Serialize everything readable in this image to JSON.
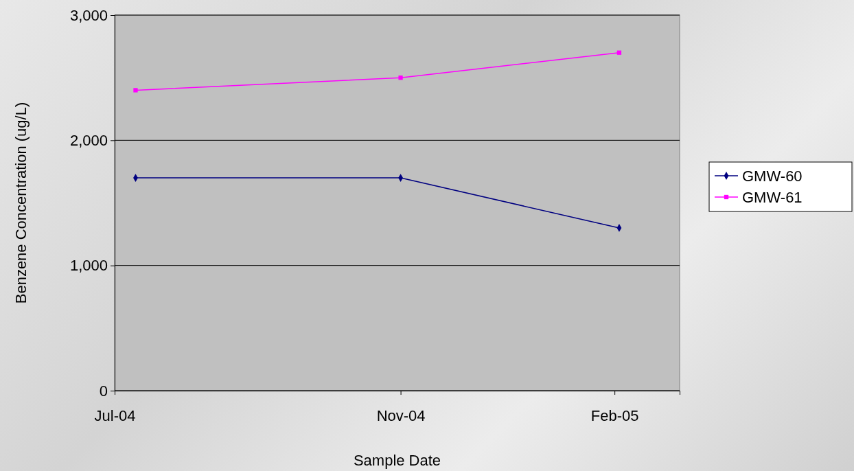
{
  "chart_data": {
    "type": "line",
    "xlabel": "Sample Date",
    "ylabel": "Benzene Concentration (ug/L)",
    "x": [
      "2004-07-10",
      "2004-11-01",
      "2005-02-03"
    ],
    "series": [
      {
        "name": "GMW-60",
        "color": "#000080",
        "marker": "diamond",
        "values": [
          1700,
          1700,
          1300
        ]
      },
      {
        "name": "GMW-61",
        "color": "#ff00ff",
        "marker": "square",
        "values": [
          2400,
          2500,
          2700
        ]
      }
    ],
    "xlim": [
      "2004-07-01",
      "2005-03-01"
    ],
    "xticks": [
      {
        "value": "2004-07-01",
        "label": "Jul-04"
      },
      {
        "value": "2004-11-01",
        "label": "Nov-04"
      },
      {
        "value": "2005-02-01",
        "label": "Feb-05"
      }
    ],
    "ylim": [
      0,
      3000
    ],
    "yticks": [
      {
        "value": 0,
        "label": "0"
      },
      {
        "value": 1000,
        "label": "1,000"
      },
      {
        "value": 2000,
        "label": "2,000"
      },
      {
        "value": 3000,
        "label": "3,000"
      }
    ],
    "grid": "y",
    "legend": "right",
    "line_style": "solid"
  }
}
